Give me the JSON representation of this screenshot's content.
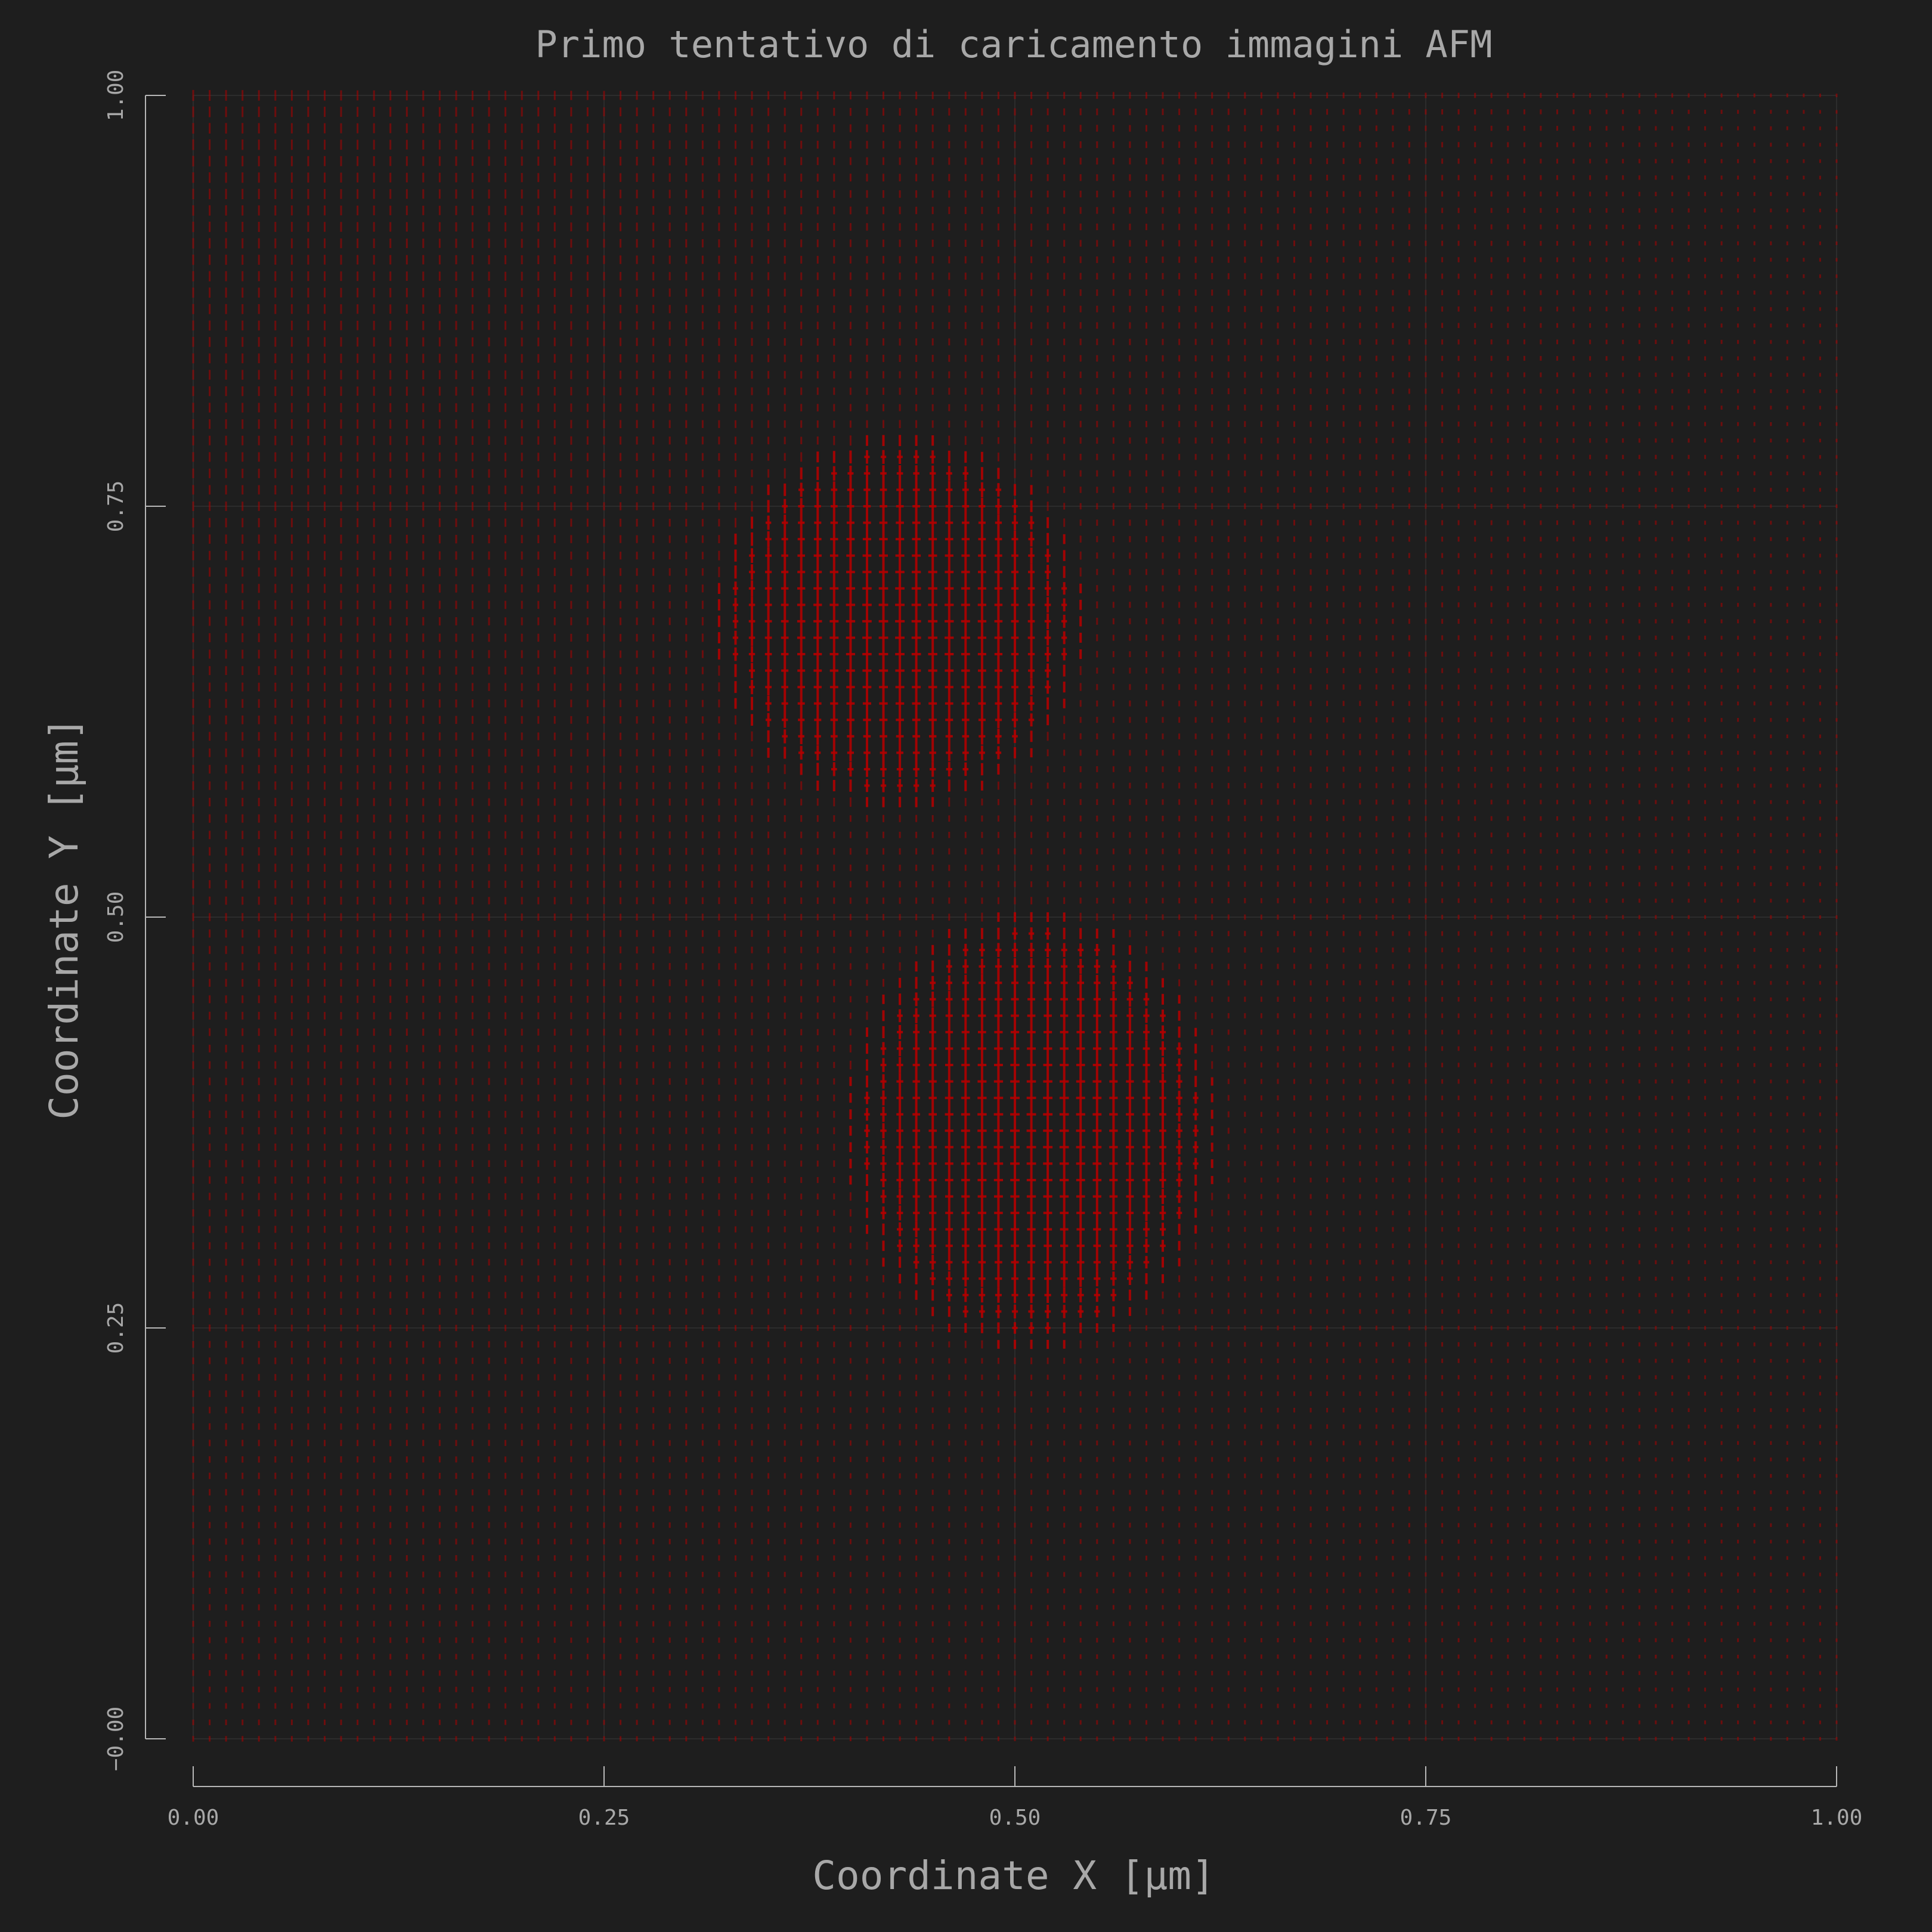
{
  "chart_data": {
    "type": "heatmap",
    "title": "Primo tentativo di caricamento immagini AFM",
    "xlabel": "Coordinate X [µm]",
    "ylabel": "Coordinate Y [µm]",
    "xlim": [
      0.0,
      1.0
    ],
    "ylim": [
      0.0,
      1.0
    ],
    "xticks": [
      "0.00",
      "0.25",
      "0.50",
      "0.75",
      "1.00"
    ],
    "yticks": [
      "−0.00",
      "0.25",
      "0.50",
      "0.75",
      "1.00"
    ],
    "grid": true,
    "marker_color": "#b00000",
    "features": [
      {
        "kind": "bump",
        "center_x": 0.43,
        "center_y": 0.68,
        "radius_x": 0.11,
        "radius_y": 0.11
      },
      {
        "kind": "bump",
        "center_x": 0.51,
        "center_y": 0.37,
        "radius_x": 0.11,
        "radius_y": 0.13
      }
    ],
    "background_gradient": "stronger toward upper-left, fading toward lower-right"
  },
  "colors": {
    "background": "#1e1e1e",
    "text": "#a8a8a8",
    "axis": "#b8b8b8",
    "marker": "#b00000"
  }
}
